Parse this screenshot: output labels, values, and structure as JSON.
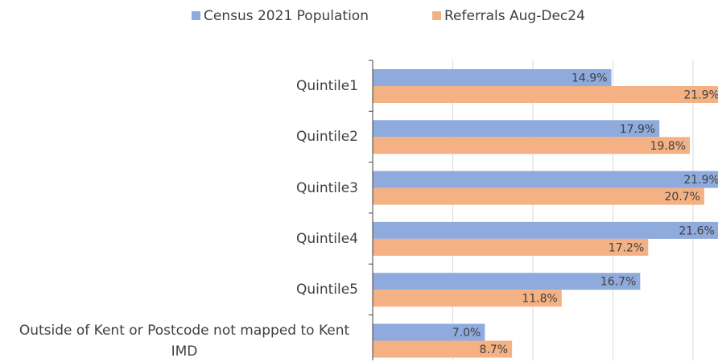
{
  "chart_data": {
    "type": "barh",
    "categories": [
      "Quintile1",
      "Quintile2",
      "Quintile3",
      "Quintile4",
      "Quintile5",
      "Outside of Kent or Postcode not mapped to Kent IMD"
    ],
    "series": [
      {
        "name": "Census 2021 Population",
        "color": "#8faadc",
        "values": [
          14.9,
          17.9,
          21.9,
          21.6,
          16.7,
          7.0
        ],
        "value_labels": [
          "14.9%",
          "17.9%",
          "21.9%",
          "21.6%",
          "16.7%",
          "7.0%"
        ]
      },
      {
        "name": "Referrals Aug-Dec24",
        "color": "#f4b183",
        "values": [
          21.9,
          19.8,
          20.7,
          17.2,
          11.8,
          8.7
        ],
        "value_labels": [
          "21.9%",
          "19.8%",
          "20.7%",
          "17.2%",
          "11.8%",
          "8.7%"
        ]
      }
    ],
    "xlim": [
      0,
      25
    ],
    "xticks": [
      0,
      5,
      10,
      15,
      20,
      25
    ],
    "grid": true
  }
}
